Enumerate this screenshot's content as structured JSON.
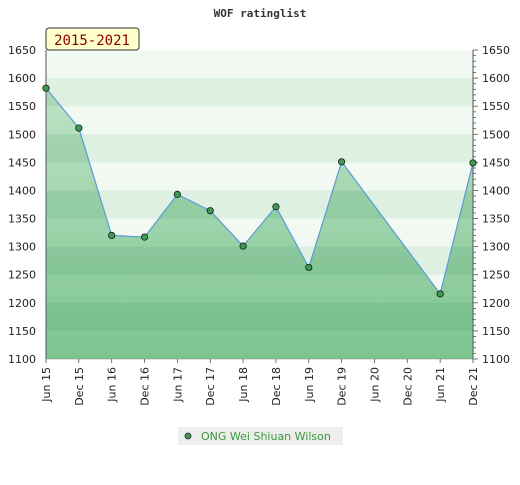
{
  "chart_data": {
    "type": "area",
    "title": "WOF ratinglist",
    "badge": "2015-2021",
    "categories": [
      "Jun 15",
      "Dec 15",
      "Jun 16",
      "Dec 16",
      "Jun 17",
      "Dec 17",
      "Jun 18",
      "Dec 18",
      "Jun 19",
      "Dec 19",
      "Jun 20",
      "Dec 20",
      "Jun 21",
      "Dec 21"
    ],
    "series": [
      {
        "name": "ONG Wei Shiuan Wilson",
        "values": [
          1582,
          1511,
          1320,
          1317,
          1393,
          1364,
          1301,
          1371,
          1263,
          1451,
          null,
          null,
          1216,
          1449
        ]
      }
    ],
    "ylim": [
      1100,
      1650
    ],
    "yticks": [
      1100,
      1150,
      1200,
      1250,
      1300,
      1350,
      1400,
      1450,
      1500,
      1550,
      1600,
      1650
    ],
    "grid": true,
    "legend_position": "bottom",
    "colors": {
      "line": "#5b9bd5",
      "marker_fill": "#3d9a54",
      "area_top": "#bfe3c6",
      "area_bottom": "#7cc48f",
      "band_light": "#e8f5ea",
      "band_mid": "#cfe9d4",
      "badge_bg": "#ffffcc",
      "badge_text": "#880000",
      "legend_text": "#3a9a3a"
    }
  }
}
